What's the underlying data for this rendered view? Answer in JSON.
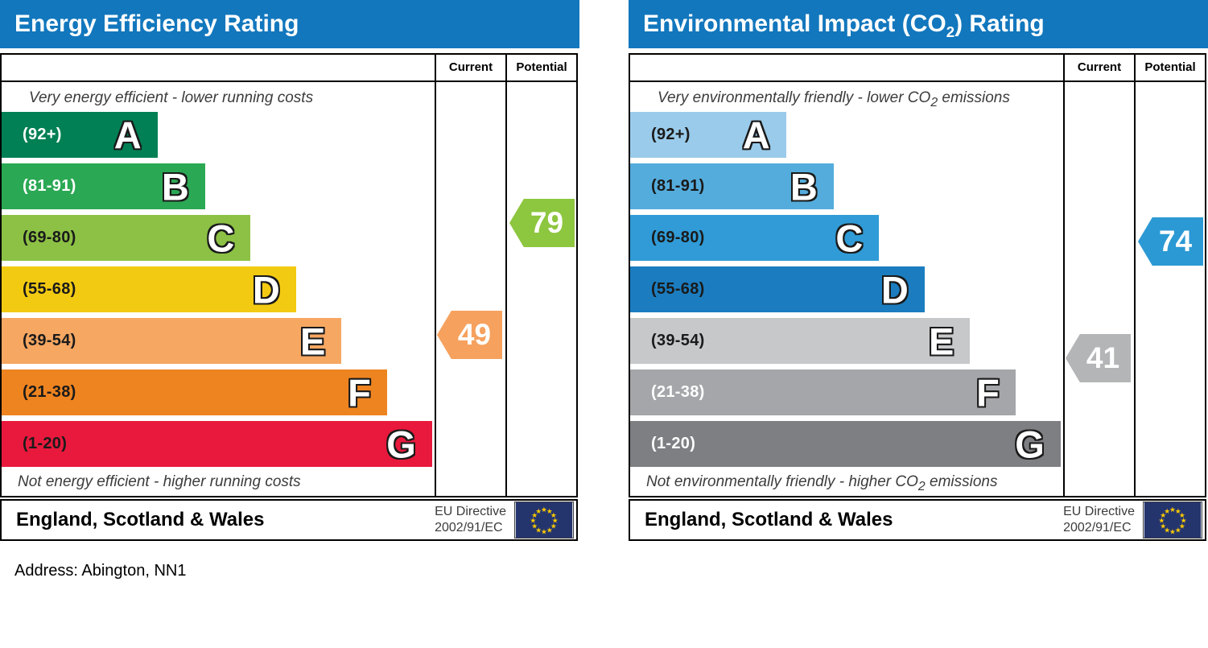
{
  "address": "Address: Abington, NN1",
  "charts": [
    {
      "id": "energy-efficiency",
      "title": {
        "pre": "Energy Efficiency Rating",
        "sub": "",
        "post": ""
      },
      "columns": {
        "current": "Current",
        "potential": "Potential"
      },
      "caption_top": {
        "pre": "Very energy efficient - lower running costs",
        "sub": "",
        "post": ""
      },
      "caption_bottom": {
        "pre": "Not energy efficient - higher running costs",
        "sub": "",
        "post": ""
      },
      "footer": {
        "region": "England, Scotland & Wales",
        "directive_line1": "EU Directive",
        "directive_line2": "2002/91/EC"
      },
      "bands": [
        {
          "letter": "A",
          "range_label": "(92+)",
          "lo": 92,
          "hi": 100,
          "color": "#008054",
          "label_color": "#ffffff",
          "width_pct": 36
        },
        {
          "letter": "B",
          "range_label": "(81-91)",
          "lo": 81,
          "hi": 91,
          "color": "#2ba854",
          "label_color": "#ffffff",
          "width_pct": 47
        },
        {
          "letter": "C",
          "range_label": "(69-80)",
          "lo": 69,
          "hi": 80,
          "color": "#8cc145",
          "label_color": "#1a1a1a",
          "width_pct": 57.5
        },
        {
          "letter": "D",
          "range_label": "(55-68)",
          "lo": 55,
          "hi": 68,
          "color": "#f3ca12",
          "label_color": "#1a1a1a",
          "width_pct": 68
        },
        {
          "letter": "E",
          "range_label": "(39-54)",
          "lo": 39,
          "hi": 54,
          "color": "#f6a762",
          "label_color": "#1a1a1a",
          "width_pct": 78.5
        },
        {
          "letter": "F",
          "range_label": "(21-38)",
          "lo": 21,
          "hi": 38,
          "color": "#ee8420",
          "label_color": "#1a1a1a",
          "width_pct": 89
        },
        {
          "letter": "G",
          "range_label": "(1-20)",
          "lo": 1,
          "hi": 20,
          "color": "#e8193c",
          "label_color": "#1a1a1a",
          "width_pct": 99.4
        }
      ],
      "current": {
        "value": 49,
        "band_index": 4,
        "color": "#f6a15e"
      },
      "potential": {
        "value": 79,
        "band_index": 2,
        "color": "#8dc63f"
      }
    },
    {
      "id": "environmental-impact",
      "title": {
        "pre": "Environmental Impact (CO",
        "sub": "2",
        "post": ") Rating"
      },
      "columns": {
        "current": "Current",
        "potential": "Potential"
      },
      "caption_top": {
        "pre": "Very environmentally friendly - lower CO",
        "sub": "2",
        "post": " emissions"
      },
      "caption_bottom": {
        "pre": "Not environmentally friendly - higher CO",
        "sub": "2",
        "post": " emissions"
      },
      "footer": {
        "region": "England, Scotland & Wales",
        "directive_line1": "EU Directive",
        "directive_line2": "2002/91/EC"
      },
      "bands": [
        {
          "letter": "A",
          "range_label": "(92+)",
          "lo": 92,
          "hi": 100,
          "color": "#9acbea",
          "label_color": "#1a1a1a",
          "width_pct": 36
        },
        {
          "letter": "B",
          "range_label": "(81-91)",
          "lo": 81,
          "hi": 91,
          "color": "#54acdc",
          "label_color": "#1a1a1a",
          "width_pct": 47
        },
        {
          "letter": "C",
          "range_label": "(69-80)",
          "lo": 69,
          "hi": 80,
          "color": "#309bd6",
          "label_color": "#1a1a1a",
          "width_pct": 57.5
        },
        {
          "letter": "D",
          "range_label": "(55-68)",
          "lo": 55,
          "hi": 68,
          "color": "#1b7dc0",
          "label_color": "#1a1a1a",
          "width_pct": 68
        },
        {
          "letter": "E",
          "range_label": "(39-54)",
          "lo": 39,
          "hi": 54,
          "color": "#c7c8ca",
          "label_color": "#1a1a1a",
          "width_pct": 78.5
        },
        {
          "letter": "F",
          "range_label": "(21-38)",
          "lo": 21,
          "hi": 38,
          "color": "#a5a6a9",
          "label_color": "#ffffff",
          "width_pct": 89
        },
        {
          "letter": "G",
          "range_label": "(1-20)",
          "lo": 1,
          "hi": 20,
          "color": "#7e7f83",
          "label_color": "#ffffff",
          "width_pct": 99.4
        }
      ],
      "current": {
        "value": 41,
        "band_index": 4,
        "color": "#b4b5b7"
      },
      "potential": {
        "value": 74,
        "band_index": 2,
        "color": "#2b99d4"
      }
    }
  ],
  "chart_data": [
    {
      "type": "bar",
      "title": "Energy Efficiency Rating",
      "categories": [
        "A",
        "B",
        "C",
        "D",
        "E",
        "F",
        "G"
      ],
      "band_ranges": [
        "92+",
        "81-91",
        "69-80",
        "55-68",
        "39-54",
        "21-38",
        "1-20"
      ],
      "bar_widths_pct": [
        36,
        47,
        57.5,
        68,
        78.5,
        89,
        99.4
      ],
      "current": 49,
      "current_band": "E",
      "potential": 79,
      "potential_band": "C",
      "top_caption": "Very energy efficient - lower running costs",
      "bottom_caption": "Not energy efficient - higher running costs",
      "region": "England, Scotland & Wales",
      "directive": "EU Directive 2002/91/EC"
    },
    {
      "type": "bar",
      "title": "Environmental Impact (CO2) Rating",
      "categories": [
        "A",
        "B",
        "C",
        "D",
        "E",
        "F",
        "G"
      ],
      "band_ranges": [
        "92+",
        "81-91",
        "69-80",
        "55-68",
        "39-54",
        "21-38",
        "1-20"
      ],
      "bar_widths_pct": [
        36,
        47,
        57.5,
        68,
        78.5,
        89,
        99.4
      ],
      "current": 41,
      "current_band": "E",
      "potential": 74,
      "potential_band": "C",
      "top_caption": "Very environmentally friendly - lower CO2 emissions",
      "bottom_caption": "Not environmentally friendly - higher CO2 emissions",
      "region": "England, Scotland & Wales",
      "directive": "EU Directive 2002/91/EC"
    }
  ]
}
